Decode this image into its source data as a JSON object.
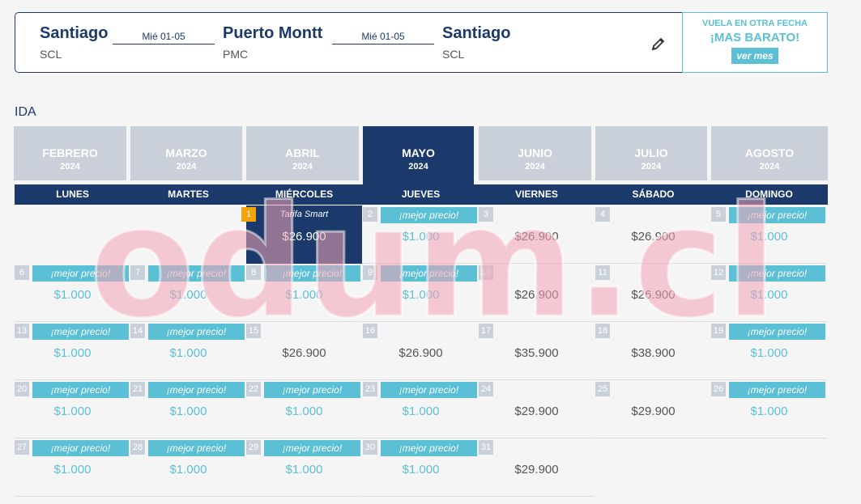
{
  "route": {
    "origin": {
      "city": "Santiago",
      "code": "SCL"
    },
    "leg1_date": "Mié 01-05",
    "destination": {
      "city": "Puerto Montt",
      "code": "PMC"
    },
    "leg2_date": "Mié 01-05",
    "return": {
      "city": "Santiago",
      "code": "SCL"
    }
  },
  "promo": {
    "line1": "VUELA EN OTRA FECHA",
    "line2": "¡MAS BARATO!",
    "button": "ver mes"
  },
  "section_label": "IDA",
  "months": [
    {
      "name": "FEBRERO",
      "year": "2024"
    },
    {
      "name": "MARZO",
      "year": "2024"
    },
    {
      "name": "ABRIL",
      "year": "2024"
    },
    {
      "name": "MAYO",
      "year": "2024"
    },
    {
      "name": "JUNIO",
      "year": "2024"
    },
    {
      "name": "JULIO",
      "year": "2024"
    },
    {
      "name": "AGOSTO",
      "year": "2024"
    }
  ],
  "active_month": "MAYO",
  "weekdays": [
    "LUNES",
    "MARTES",
    "MIÉRCOLES",
    "JUEVES",
    "VIERNES",
    "SÁBADO",
    "DOMINGO"
  ],
  "selected_label": "Tarifa Smart",
  "best_label": "¡mejor precio!",
  "days": [
    {
      "day": "1",
      "price": "$26.900",
      "best": false,
      "selected": true
    },
    {
      "day": "2",
      "price": "$1.000",
      "best": true
    },
    {
      "day": "3",
      "price": "$26.900",
      "best": false
    },
    {
      "day": "4",
      "price": "$26.900",
      "best": false
    },
    {
      "day": "5",
      "price": "$1.000",
      "best": true
    },
    {
      "day": "6",
      "price": "$1.000",
      "best": true
    },
    {
      "day": "7",
      "price": "$1.000",
      "best": true
    },
    {
      "day": "8",
      "price": "$1.000",
      "best": true
    },
    {
      "day": "9",
      "price": "$1.000",
      "best": true
    },
    {
      "day": "10",
      "price": "$26.900",
      "best": false
    },
    {
      "day": "11",
      "price": "$26.900",
      "best": false
    },
    {
      "day": "12",
      "price": "$1.000",
      "best": true
    },
    {
      "day": "13",
      "price": "$1.000",
      "best": true
    },
    {
      "day": "14",
      "price": "$1.000",
      "best": true
    },
    {
      "day": "15",
      "price": "$26.900",
      "best": false
    },
    {
      "day": "16",
      "price": "$26.900",
      "best": false
    },
    {
      "day": "17",
      "price": "$35.900",
      "best": false
    },
    {
      "day": "18",
      "price": "$38.900",
      "best": false
    },
    {
      "day": "19",
      "price": "$1.000",
      "best": true
    },
    {
      "day": "20",
      "price": "$1.000",
      "best": true
    },
    {
      "day": "21",
      "price": "$1.000",
      "best": true
    },
    {
      "day": "22",
      "price": "$1.000",
      "best": true
    },
    {
      "day": "23",
      "price": "$1.000",
      "best": true
    },
    {
      "day": "24",
      "price": "$29.900",
      "best": false
    },
    {
      "day": "25",
      "price": "$29.900",
      "best": false
    },
    {
      "day": "26",
      "price": "$1.000",
      "best": true
    },
    {
      "day": "27",
      "price": "$1.000",
      "best": true
    },
    {
      "day": "28",
      "price": "$1.000",
      "best": true
    },
    {
      "day": "29",
      "price": "$1.000",
      "best": true
    },
    {
      "day": "30",
      "price": "$1.000",
      "best": true
    },
    {
      "day": "31",
      "price": "$29.900",
      "best": false
    }
  ],
  "watermark": "odum.cl",
  "colors": {
    "navy": "#1b3a6b",
    "cyan": "#5bc0d6",
    "inactive": "#c9d0d9",
    "selected_day": "#f0a30a"
  }
}
